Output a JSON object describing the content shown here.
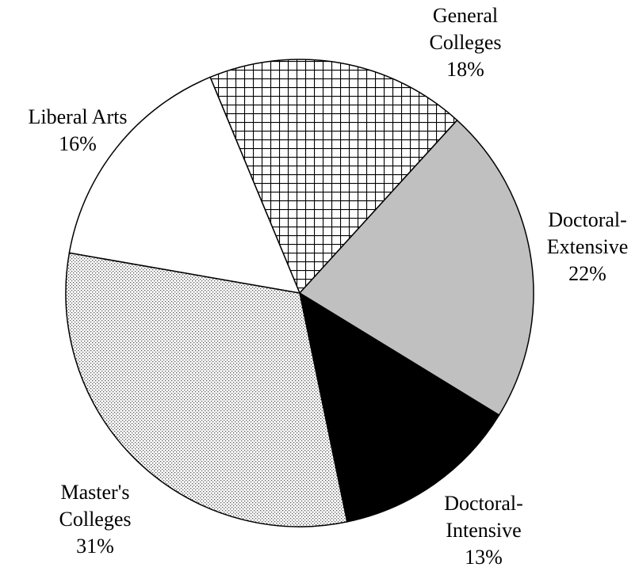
{
  "chart_data": {
    "type": "pie",
    "categories": [
      "General Colleges",
      "Doctoral-Extensive",
      "Doctoral-Intensive",
      "Master's Colleges",
      "Liberal Arts"
    ],
    "values": [
      18,
      22,
      13,
      31,
      16
    ],
    "value_labels": [
      "18%",
      "22%",
      "13%",
      "31%",
      "16%"
    ],
    "colors": [
      "crosshatch",
      "#c0c0c0",
      "#000000",
      "dots",
      "#ffffff"
    ]
  }
}
